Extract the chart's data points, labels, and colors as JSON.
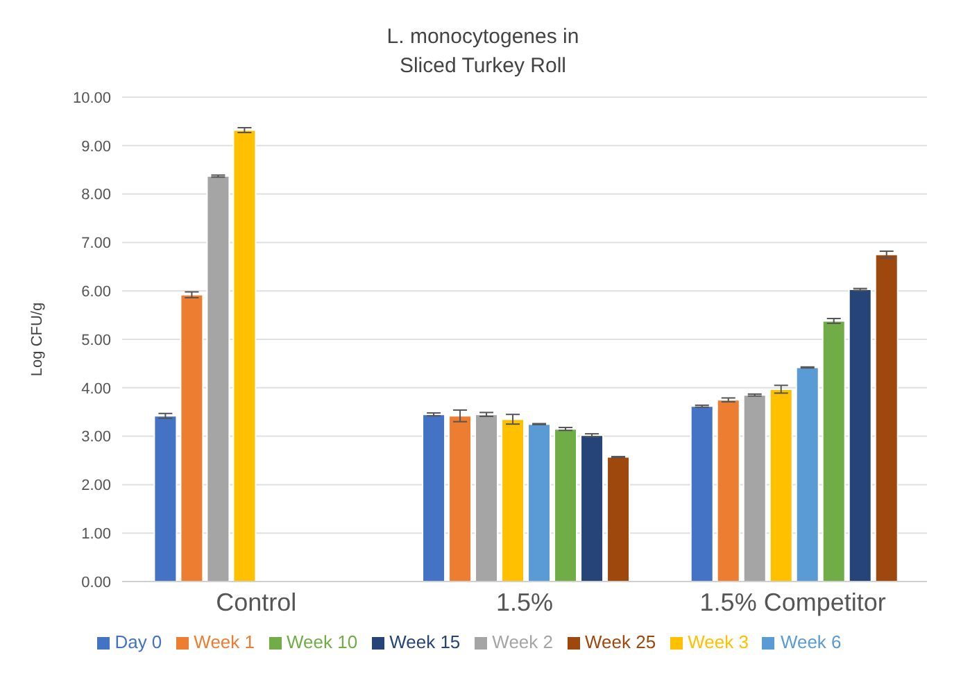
{
  "chart_data": {
    "type": "bar",
    "title": "L. monocytogenes in\nSliced Turkey Roll",
    "ylabel": "Log CFU/g",
    "categories": [
      "Control",
      "1.5%",
      "1.5% Competitor"
    ],
    "series": [
      {
        "name": "Day 0",
        "color": "#4472c4",
        "values": [
          3.42,
          3.45,
          3.62
        ],
        "errors": [
          0.05,
          0.03,
          0.02
        ]
      },
      {
        "name": "Week 1",
        "color": "#ed7d31",
        "values": [
          5.92,
          3.42,
          3.75
        ],
        "errors": [
          0.06,
          0.12,
          0.04
        ]
      },
      {
        "name": "Week 2",
        "color": "#a5a5a5",
        "values": [
          8.37,
          3.45,
          3.85
        ],
        "errors": [
          0.02,
          0.04,
          0.02
        ]
      },
      {
        "name": "Week 3",
        "color": "#ffc000",
        "values": [
          9.32,
          3.35,
          3.97
        ],
        "errors": [
          0.05,
          0.1,
          0.08
        ]
      },
      {
        "name": "Week 6",
        "color": "#5b9bd5",
        "values": [
          null,
          3.25,
          4.42
        ],
        "errors": [
          null,
          0.01,
          0.01
        ]
      },
      {
        "name": "Week 10",
        "color": "#70ad47",
        "values": [
          null,
          3.15,
          5.38
        ],
        "errors": [
          null,
          0.03,
          0.05
        ]
      },
      {
        "name": "Week 15",
        "color": "#264478",
        "values": [
          null,
          3.02,
          6.03
        ],
        "errors": [
          null,
          0.03,
          0.02
        ]
      },
      {
        "name": "Week 25",
        "color": "#9e480e",
        "values": [
          null,
          2.57,
          6.75
        ],
        "errors": [
          null,
          0.01,
          0.07
        ]
      }
    ],
    "ylim": [
      0,
      10
    ],
    "yticks": [
      {
        "value": 0,
        "label": "0.00"
      },
      {
        "value": 1,
        "label": "1.00"
      },
      {
        "value": 2,
        "label": "2.00"
      },
      {
        "value": 3,
        "label": "3.00"
      },
      {
        "value": 4,
        "label": "4.00"
      },
      {
        "value": 5,
        "label": "5.00"
      },
      {
        "value": 6,
        "label": "6.00"
      },
      {
        "value": 7,
        "label": "7.00"
      },
      {
        "value": 8,
        "label": "8.00"
      },
      {
        "value": 9,
        "label": "9.00"
      },
      {
        "value": 10,
        "label": "10.00"
      }
    ],
    "grid": "y",
    "legend": "bottom"
  }
}
